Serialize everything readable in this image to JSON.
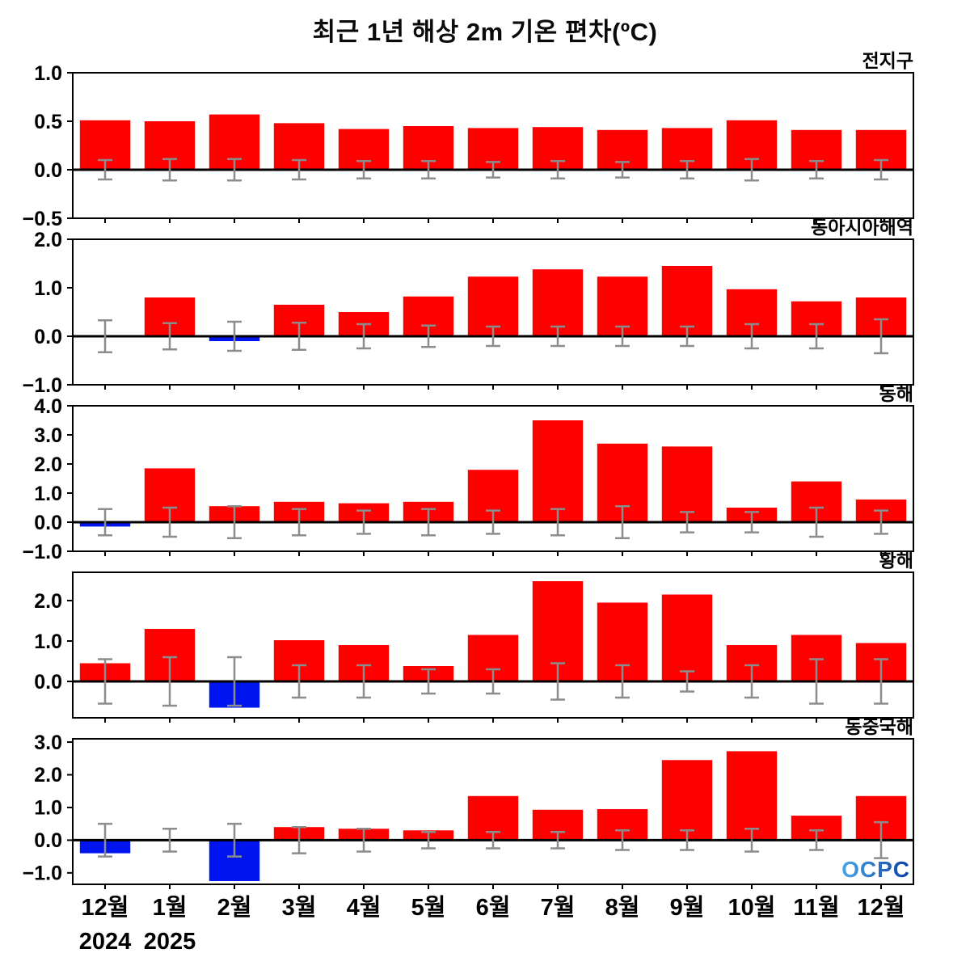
{
  "title": "최근 1년 해상 2m 기온 편차(ºC)",
  "logo_text": "OCPC",
  "x_labels": [
    "12월",
    "1월",
    "2월",
    "3월",
    "4월",
    "5월",
    "6월",
    "7월",
    "8월",
    "9월",
    "10월",
    "11월",
    "12월"
  ],
  "year_labels": [
    {
      "text": "2024",
      "month_index": 0
    },
    {
      "text": "2025",
      "month_index": 1
    }
  ],
  "colors": {
    "positive": "#ff0000",
    "negative": "#0014f0",
    "error_bar": "#8c8c8c",
    "axis": "#000000"
  },
  "chart_data": [
    {
      "type": "bar",
      "title": "전지구",
      "categories": [
        "12월",
        "1월",
        "2월",
        "3월",
        "4월",
        "5월",
        "6월",
        "7월",
        "8월",
        "9월",
        "10월",
        "11월",
        "12월"
      ],
      "values": [
        0.51,
        0.5,
        0.57,
        0.48,
        0.42,
        0.45,
        0.43,
        0.44,
        0.41,
        0.43,
        0.51,
        0.41,
        0.41
      ],
      "errors": [
        0.1,
        0.11,
        0.11,
        0.1,
        0.09,
        0.09,
        0.08,
        0.09,
        0.08,
        0.09,
        0.11,
        0.09,
        0.1
      ],
      "ylim": [
        -0.5,
        1.0
      ],
      "yticks": [
        1.0,
        0.5,
        0.0,
        -0.5
      ]
    },
    {
      "type": "bar",
      "title": "동아시아해역",
      "categories": [
        "12월",
        "1월",
        "2월",
        "3월",
        "4월",
        "5월",
        "6월",
        "7월",
        "8월",
        "9월",
        "10월",
        "11월",
        "12월"
      ],
      "values": [
        0.02,
        0.8,
        -0.1,
        0.65,
        0.5,
        0.82,
        1.23,
        1.38,
        1.23,
        1.45,
        0.97,
        0.72,
        0.8
      ],
      "errors": [
        0.33,
        0.27,
        0.3,
        0.28,
        0.25,
        0.22,
        0.2,
        0.2,
        0.2,
        0.2,
        0.25,
        0.25,
        0.35
      ],
      "ylim": [
        -1.0,
        2.0
      ],
      "yticks": [
        2.0,
        1.0,
        0.0,
        -1.0
      ]
    },
    {
      "type": "bar",
      "title": "동해",
      "categories": [
        "12월",
        "1월",
        "2월",
        "3월",
        "4월",
        "5월",
        "6월",
        "7월",
        "8월",
        "9월",
        "10월",
        "11월",
        "12월"
      ],
      "values": [
        -0.15,
        1.85,
        0.55,
        0.7,
        0.65,
        0.7,
        1.8,
        3.5,
        2.7,
        2.6,
        0.5,
        1.4,
        0.78
      ],
      "errors": [
        0.45,
        0.5,
        0.55,
        0.45,
        0.4,
        0.45,
        0.4,
        0.45,
        0.55,
        0.35,
        0.35,
        0.5,
        0.4
      ],
      "ylim": [
        -1.0,
        4.0
      ],
      "yticks": [
        4.0,
        3.0,
        2.0,
        1.0,
        0.0,
        -1.0
      ]
    },
    {
      "type": "bar",
      "title": "황해",
      "categories": [
        "12월",
        "1월",
        "2월",
        "3월",
        "4월",
        "5월",
        "6월",
        "7월",
        "8월",
        "9월",
        "10월",
        "11월",
        "12월"
      ],
      "values": [
        0.45,
        1.3,
        -0.65,
        1.02,
        0.9,
        0.38,
        1.15,
        2.48,
        1.95,
        2.15,
        0.9,
        1.15,
        0.95
      ],
      "errors": [
        0.55,
        0.6,
        0.6,
        0.4,
        0.4,
        0.3,
        0.3,
        0.45,
        0.4,
        0.25,
        0.4,
        0.55,
        0.55
      ],
      "ylim": [
        -0.9,
        2.7
      ],
      "yticks": [
        2.0,
        1.0,
        0.0
      ]
    },
    {
      "type": "bar",
      "title": "동중국해",
      "categories": [
        "12월",
        "1월",
        "2월",
        "3월",
        "4월",
        "5월",
        "6월",
        "7월",
        "8월",
        "9월",
        "10월",
        "11월",
        "12월"
      ],
      "values": [
        -0.4,
        0.03,
        -1.25,
        0.4,
        0.35,
        0.3,
        1.35,
        0.93,
        0.95,
        2.45,
        2.72,
        0.75,
        1.35
      ],
      "errors": [
        0.5,
        0.35,
        0.5,
        0.4,
        0.35,
        0.25,
        0.25,
        0.25,
        0.3,
        0.3,
        0.35,
        0.3,
        0.55
      ],
      "ylim": [
        -1.35,
        3.1
      ],
      "yticks": [
        3.0,
        2.0,
        1.0,
        0.0,
        -1.0
      ]
    }
  ]
}
